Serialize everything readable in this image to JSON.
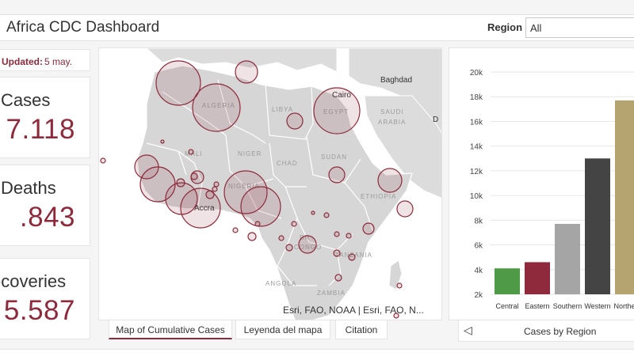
{
  "header": {
    "title": "Africa CDC Dashboard",
    "region_label": "Region",
    "region_value": "All"
  },
  "indicators": {
    "updated_label": "Updated:",
    "updated_value": "5 may.",
    "cases": {
      "label": "Cases",
      "value": "7.118"
    },
    "deaths": {
      "label": "Deaths",
      "value": ".843"
    },
    "recoveries": {
      "label": "ecoveries",
      "value": "5.587"
    }
  },
  "map": {
    "labels": [
      {
        "text": "ALGERIA"
      },
      {
        "text": "LIBYA"
      },
      {
        "text": "EGYPT"
      },
      {
        "text": "Cairo"
      },
      {
        "text": "Baghdad"
      },
      {
        "text": "SAUDI"
      },
      {
        "text": "ARABIA"
      },
      {
        "text": "D"
      },
      {
        "text": "MALI"
      },
      {
        "text": "NIGER"
      },
      {
        "text": "CHAD"
      },
      {
        "text": "SUDAN"
      },
      {
        "text": "NIGERIA"
      },
      {
        "text": "Accra"
      },
      {
        "text": "ETHIOPIA"
      },
      {
        "text": "DR"
      },
      {
        "text": "CONGO"
      },
      {
        "text": "TANZANIA"
      },
      {
        "text": "ANGOLA"
      },
      {
        "text": "ZAMBIA"
      }
    ],
    "attribution": "Esri, FAO, NOAA | Esri, FAO, N...",
    "tabs": {
      "map": "Map of Cumulative Cases",
      "legend": "Leyenda del mapa",
      "citation": "Citation"
    },
    "bubble_color": "#8e2a3b"
  },
  "chart_data": {
    "type": "bar",
    "categories": [
      "Central",
      "Eastern",
      "Southern",
      "Western",
      "Northern"
    ],
    "values": [
      4100,
      4600,
      7700,
      13000,
      17700
    ],
    "colors": [
      "#4e9a46",
      "#8e2a3b",
      "#a5a5a5",
      "#444444",
      "#b5a46f"
    ],
    "yticks": [
      "2k",
      "4k",
      "6k",
      "8k",
      "10k",
      "12k",
      "14k",
      "16k",
      "18k",
      "20k"
    ],
    "ylim": [
      2000,
      20000
    ],
    "title": "Cases by Region"
  },
  "chart_footer": {
    "arrow": "◁",
    "caption": "Cases by Region"
  }
}
